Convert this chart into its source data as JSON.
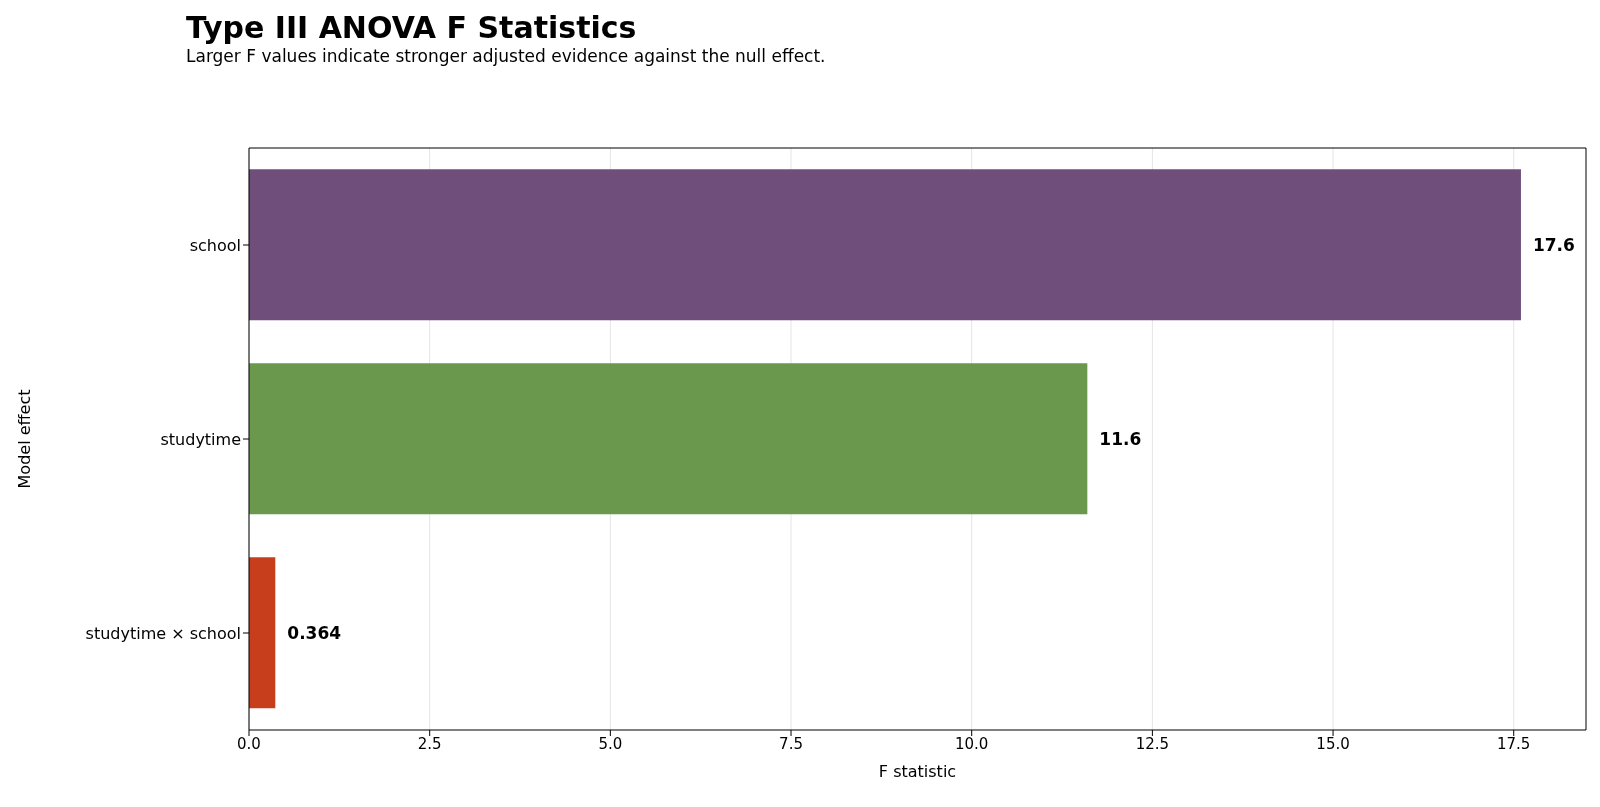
{
  "chart_data": {
    "type": "bar",
    "orientation": "horizontal",
    "title": "Type III ANOVA F Statistics",
    "subtitle": "Larger F values indicate stronger adjusted evidence against the null effect.",
    "xlabel": "F statistic",
    "ylabel": "Model effect",
    "categories": [
      "school",
      "studytime",
      "studytime × school"
    ],
    "values": [
      17.6,
      11.6,
      0.364
    ],
    "colors": [
      "#6f4e7c",
      "#6a994e",
      "#c73e1d"
    ],
    "xlim": [
      0,
      18.5
    ],
    "xticks": [
      {
        "value": 0,
        "label": "0.0"
      },
      {
        "value": 2.5,
        "label": "2.5"
      },
      {
        "value": 5,
        "label": "5.0"
      },
      {
        "value": 7.5,
        "label": "7.5"
      },
      {
        "value": 10,
        "label": "10.0"
      },
      {
        "value": 12.5,
        "label": "12.5"
      },
      {
        "value": 15,
        "label": "15.0"
      },
      {
        "value": 17.5,
        "label": "17.5"
      }
    ],
    "grid": "x",
    "data_labels": true
  }
}
